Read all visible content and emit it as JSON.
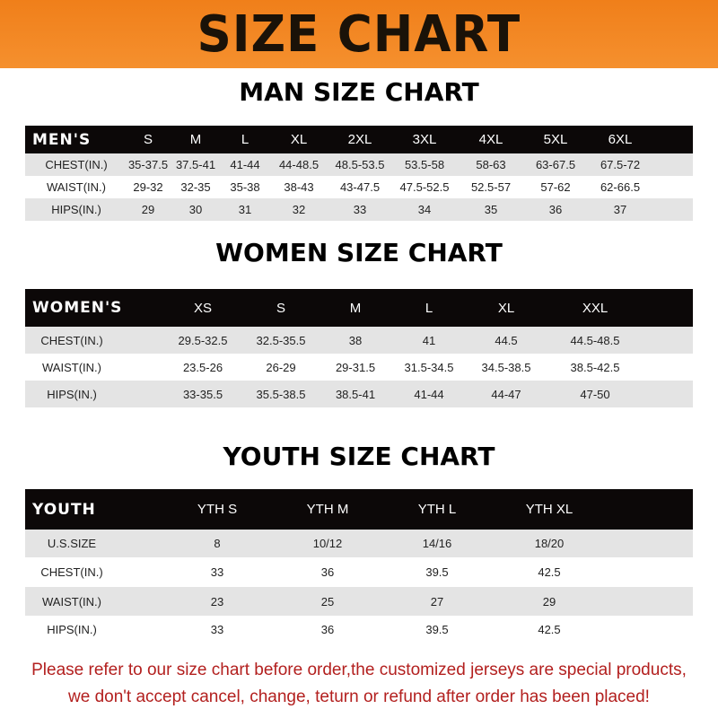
{
  "title": "SIZE CHART",
  "colors": {
    "banner": "#f5902e",
    "header_row": "#0c0808",
    "note_text": "#b3201f"
  },
  "men": {
    "heading": "MAN SIZE CHART",
    "header": [
      "MEN'S",
      "S",
      "M",
      "L",
      "XL",
      "2XL",
      "3XL",
      "4XL",
      "5XL",
      "6XL"
    ],
    "rows": [
      [
        "CHEST(IN.)",
        "35-37.5",
        "37.5-41",
        "41-44",
        "44-48.5",
        "48.5-53.5",
        "53.5-58",
        "58-63",
        "63-67.5",
        "67.5-72"
      ],
      [
        "WAIST(IN.)",
        "29-32",
        "32-35",
        "35-38",
        "38-43",
        "43-47.5",
        "47.5-52.5",
        "52.5-57",
        "57-62",
        "62-66.5"
      ],
      [
        "HIPS(IN.)",
        "29",
        "30",
        "31",
        "32",
        "33",
        "34",
        "35",
        "36",
        "37"
      ]
    ]
  },
  "women": {
    "heading": "WOMEN SIZE CHART",
    "header": [
      "WOMEN'S",
      "XS",
      "S",
      "M",
      "L",
      "XL",
      "XXL"
    ],
    "rows": [
      [
        "CHEST(IN.)",
        "29.5-32.5",
        "32.5-35.5",
        "38",
        "41",
        "44.5",
        "44.5-48.5"
      ],
      [
        "WAIST(IN.)",
        "23.5-26",
        "26-29",
        "29-31.5",
        "31.5-34.5",
        "34.5-38.5",
        "38.5-42.5"
      ],
      [
        "HIPS(IN.)",
        "33-35.5",
        "35.5-38.5",
        "38.5-41",
        "41-44",
        "44-47",
        "47-50"
      ]
    ]
  },
  "youth": {
    "heading": "YOUTH SIZE CHART",
    "header": [
      "YOUTH",
      "YTH S",
      "YTH M",
      "YTH L",
      "YTH XL"
    ],
    "rows": [
      [
        "U.S.SIZE",
        "8",
        "10/12",
        "14/16",
        "18/20"
      ],
      [
        "CHEST(IN.)",
        "33",
        "36",
        "39.5",
        "42.5"
      ],
      [
        "WAIST(IN.)",
        "23",
        "25",
        "27",
        "29"
      ],
      [
        "HIPS(IN.)",
        "33",
        "36",
        "39.5",
        "42.5"
      ]
    ]
  },
  "note": {
    "line1": "Please refer to our size chart before order,the customized jerseys are special products,",
    "line2": "we don't accept cancel, change, teturn or refund after order has been placed!"
  }
}
